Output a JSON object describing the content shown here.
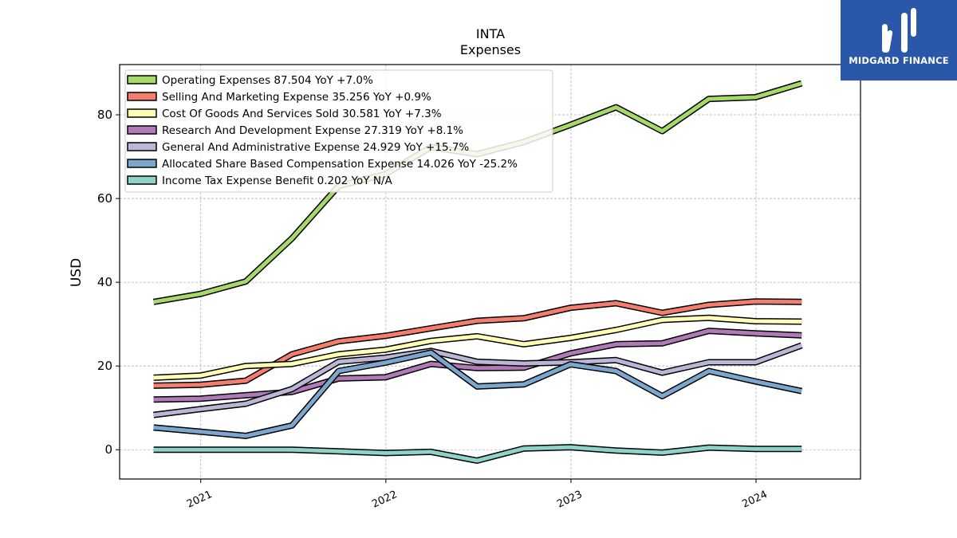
{
  "brand": {
    "name": "MIDGARD FINANCE",
    "color": "#2b57a8"
  },
  "chart_data": {
    "type": "line",
    "title": "INTA",
    "subtitle": "Expenses",
    "ylabel": "USD",
    "xlabel": "",
    "ylim": [
      -7,
      92
    ],
    "xlim": [
      "2020-07-25",
      "2024-07-25"
    ],
    "yticks": [
      0,
      20,
      40,
      60,
      80
    ],
    "xticks": [
      "2021-01-01",
      "2022-01-01",
      "2023-01-01",
      "2024-01-01"
    ],
    "xtick_labels": [
      "2021",
      "2022",
      "2023",
      "2024"
    ],
    "grid": true,
    "legend_position": "upper-left",
    "x": [
      "2020-09-30",
      "2020-12-31",
      "2021-03-31",
      "2021-06-30",
      "2021-09-30",
      "2021-12-31",
      "2022-03-31",
      "2022-06-30",
      "2022-09-30",
      "2022-12-31",
      "2023-03-31",
      "2023-06-30",
      "2023-09-30",
      "2023-12-31",
      "2024-03-31"
    ],
    "series": [
      {
        "name": "Operating Expenses",
        "legend": "Operating Expenses  87.504 YoY +7.0%",
        "color": "#a6d96a",
        "values": [
          35.3,
          37.2,
          40.2,
          50.5,
          63.0,
          65.8,
          72.3,
          70.6,
          73.5,
          77.6,
          81.8,
          76.1,
          83.8,
          84.2,
          87.5
        ]
      },
      {
        "name": "Selling And Marketing Expense",
        "legend": "Selling And Marketing Expense  35.256 YoY +0.9%",
        "color": "#f47e6e",
        "values": [
          15.3,
          15.5,
          16.5,
          22.8,
          25.9,
          27.2,
          29.0,
          30.8,
          31.4,
          33.9,
          35.0,
          32.7,
          34.6,
          35.4,
          35.3
        ]
      },
      {
        "name": "Cost Of Goods And Services Sold",
        "legend": "Cost Of Goods And Services Sold  30.581 YoY +7.3%",
        "color": "#ffffb3",
        "values": [
          17.2,
          17.7,
          20.0,
          20.5,
          22.8,
          23.9,
          26.0,
          27.1,
          25.2,
          26.7,
          28.6,
          31.0,
          31.5,
          30.7,
          30.6
        ]
      },
      {
        "name": "Research And Development Expense",
        "legend": "Research And Development Expense  27.319 YoY +8.1%",
        "color": "#b179b7",
        "values": [
          12.0,
          12.2,
          13.0,
          13.8,
          17.0,
          17.3,
          20.5,
          19.5,
          19.6,
          23.0,
          25.2,
          25.4,
          28.4,
          27.8,
          27.3
        ]
      },
      {
        "name": "General And Administrative Expense",
        "legend": "General And Administrative Expense  24.929 YoY +15.7%",
        "color": "#bcb6d6",
        "values": [
          8.3,
          9.7,
          11.0,
          14.5,
          21.0,
          22.0,
          23.6,
          21.0,
          20.6,
          20.9,
          21.4,
          18.4,
          20.9,
          20.9,
          24.9
        ]
      },
      {
        "name": "Allocated Share Based Compensation Expense",
        "legend": "Allocated Share Based Compensation Expense  14.026 YoY -25.2%",
        "color": "#7ba7cf",
        "values": [
          5.3,
          4.3,
          3.3,
          5.8,
          18.8,
          20.8,
          23.2,
          15.1,
          15.6,
          20.4,
          18.8,
          12.8,
          18.8,
          16.3,
          14.0
        ]
      },
      {
        "name": "Income Tax Expense Benefit",
        "legend": "Income Tax Expense Benefit  0.202 YoY N/A",
        "color": "#8dd3c7",
        "values": [
          0.0,
          0.0,
          0.0,
          0.0,
          -0.4,
          -0.8,
          -0.5,
          -2.6,
          0.3,
          0.6,
          -0.2,
          -0.7,
          0.5,
          0.2,
          0.2
        ]
      }
    ]
  }
}
